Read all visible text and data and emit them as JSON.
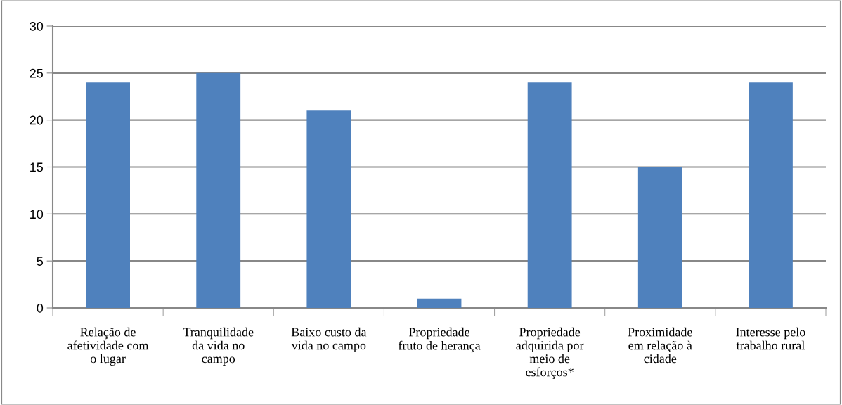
{
  "chart_data": {
    "type": "bar",
    "categories": [
      "Relação de\nafetividade com\no lugar",
      "Tranquilidade\nda vida no\ncampo",
      "Baixo custo da\nvida no campo",
      "Propriedade\nfruto de herança",
      "Propriedade\nadquirida por\nmeio de\nesforços*",
      "Proximidade\nem relação à\ncidade",
      "Interesse pelo\ntrabalho rural"
    ],
    "values": [
      24,
      25,
      21,
      1,
      24,
      15,
      24
    ],
    "color": "#4f81bd",
    "ylim": [
      0,
      30
    ],
    "yticks": [
      0,
      5,
      10,
      15,
      20,
      25,
      30
    ],
    "grid": "y",
    "legend": false
  }
}
